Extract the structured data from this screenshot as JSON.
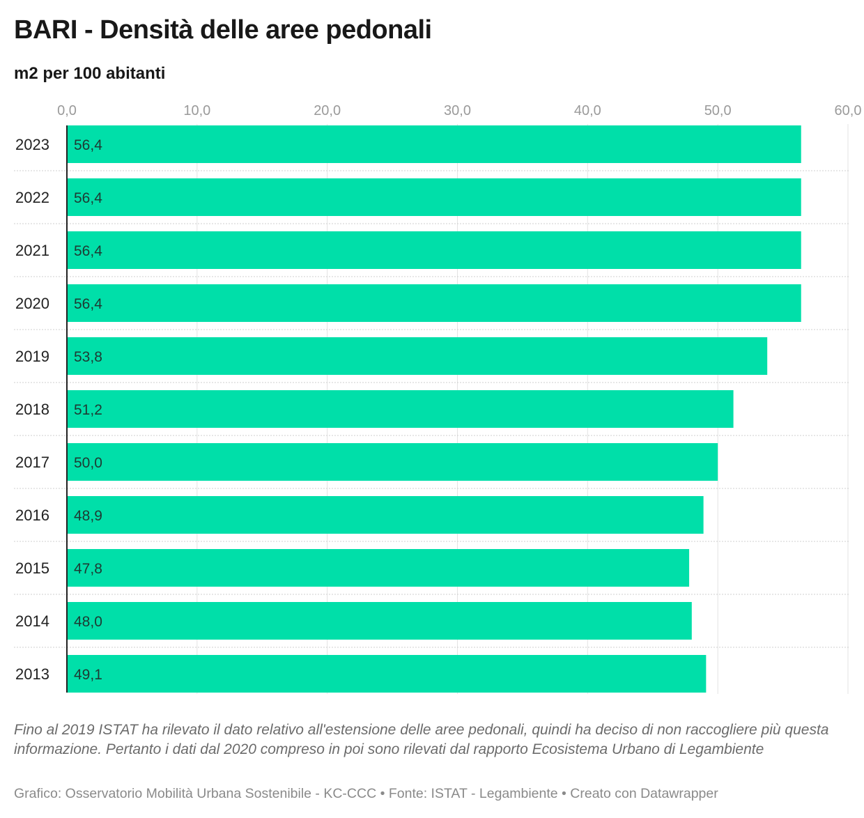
{
  "chart_data": {
    "type": "bar",
    "orientation": "horizontal",
    "title": "BARI - Densità delle aree pedonali",
    "subtitle": "m2 per 100 abitanti",
    "categories": [
      "2023",
      "2022",
      "2021",
      "2020",
      "2019",
      "2018",
      "2017",
      "2016",
      "2015",
      "2014",
      "2013"
    ],
    "values": [
      56.4,
      56.4,
      56.4,
      56.4,
      53.8,
      51.2,
      50.0,
      48.9,
      47.8,
      48.0,
      49.1
    ],
    "value_labels": [
      "56,4",
      "56,4",
      "56,4",
      "56,4",
      "53,8",
      "51,2",
      "50,0",
      "48,9",
      "47,8",
      "48,0",
      "49,1"
    ],
    "xlim": [
      0,
      60
    ],
    "x_ticks": [
      0,
      10,
      20,
      30,
      40,
      50,
      60
    ],
    "x_tick_labels": [
      "0,0",
      "10,0",
      "20,0",
      "30,0",
      "40,0",
      "50,0",
      "60,0"
    ],
    "axis_position": "top",
    "grid": true,
    "bar_color": "#00dfa9",
    "legend": "none"
  },
  "notes": "Fino al 2019 ISTAT ha rilevato il dato relativo all'estensione delle aree pedonali, quindi ha deciso di non raccogliere più questa informazione. Pertanto i dati dal 2020 compreso in poi sono rilevati dal rapporto Ecosistema Urbano di Legambiente",
  "credits": "Grafico: Osservatorio Mobilità Urbana Sostenibile - KC-CCC • Fonte: ISTAT - Legambiente • Creato con Datawrapper"
}
